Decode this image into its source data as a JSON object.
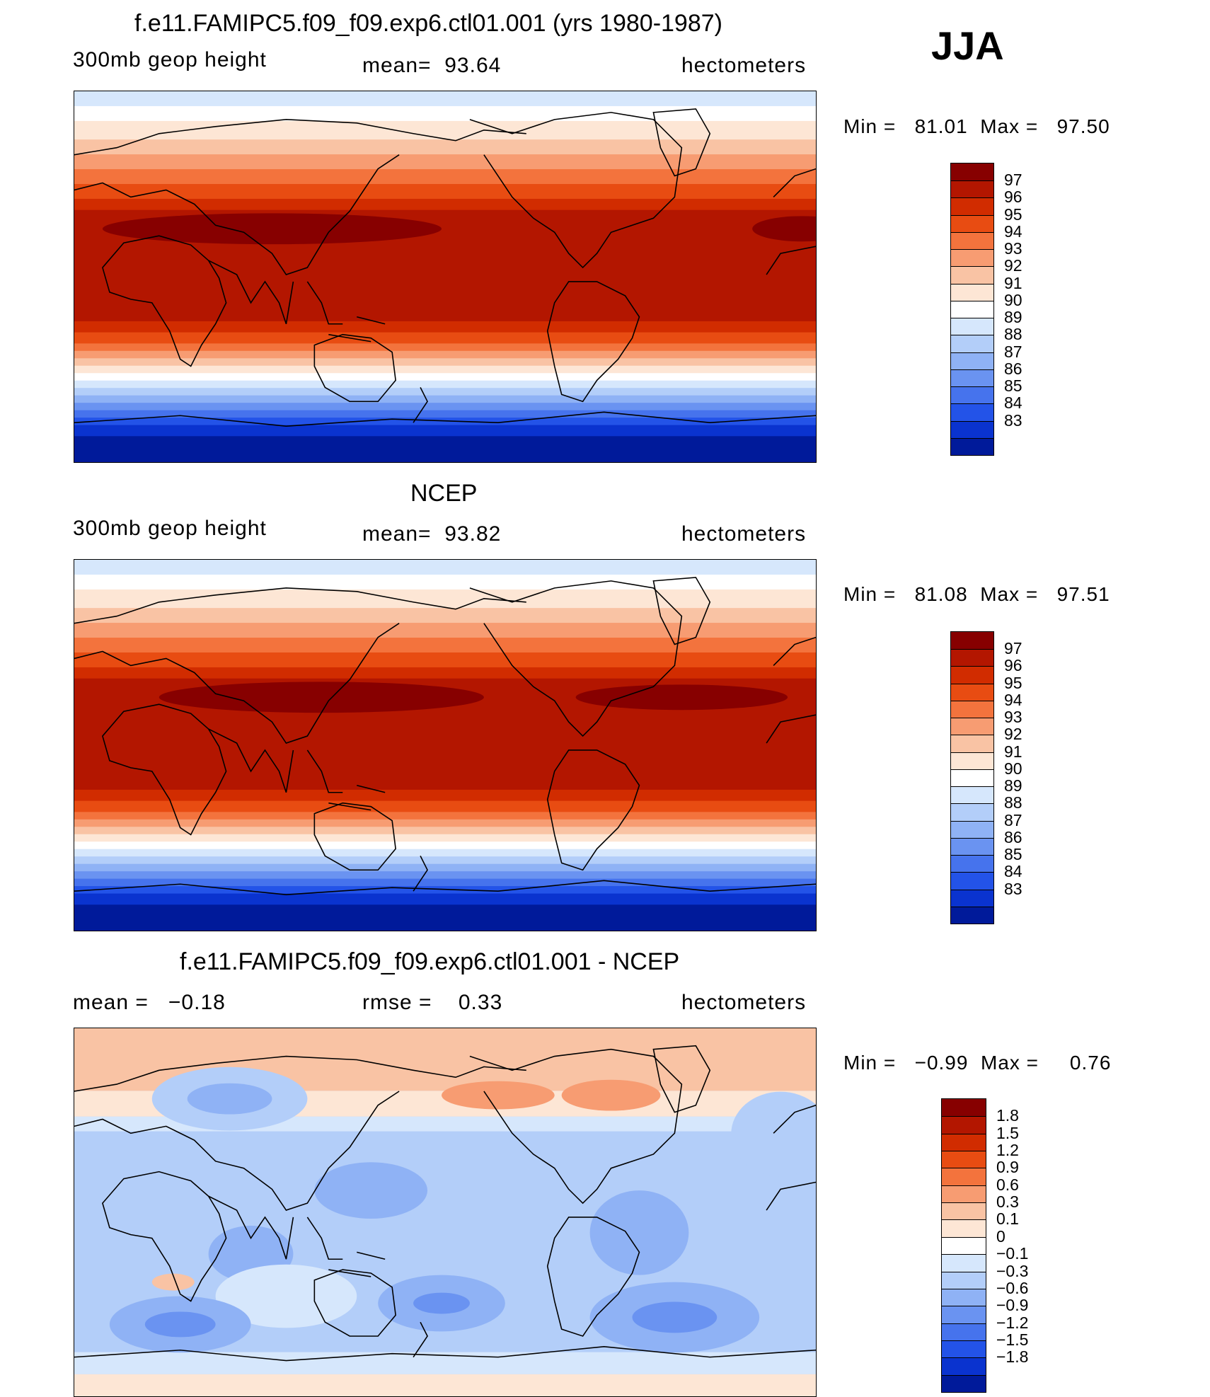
{
  "season": "JJA",
  "panels": [
    {
      "id": "model",
      "title": "f.e11.FAMIPC5.f09_f09.exp6.ctl01.001 (yrs 1980-1987)",
      "left_label": "300mb geop height",
      "center_label": "mean=  93.64",
      "right_label": "hectometers",
      "minmax": "Min =   81.01  Max =   97.50",
      "colorbar": {
        "labels": [
          "97",
          "96",
          "95",
          "94",
          "93",
          "92",
          "91",
          "90",
          "89",
          "88",
          "87",
          "86",
          "85",
          "84",
          "83"
        ],
        "colors": [
          "#870000",
          "#b31600",
          "#d12c00",
          "#e84c12",
          "#f3733d",
          "#f79c72",
          "#f9c3a4",
          "#fde6d5",
          "#ffffff",
          "#d6e7fc",
          "#b3cef9",
          "#8fb2f5",
          "#6a93f1",
          "#4673ed",
          "#2353e8",
          "#0a33cf",
          "#001a9a"
        ]
      }
    },
    {
      "id": "obs",
      "title": "NCEP",
      "left_label": "300mb geop height",
      "center_label": "mean=  93.82",
      "right_label": "hectometers",
      "minmax": "Min =   81.08  Max =   97.51",
      "colorbar": {
        "labels": [
          "97",
          "96",
          "95",
          "94",
          "93",
          "92",
          "91",
          "90",
          "89",
          "88",
          "87",
          "86",
          "85",
          "84",
          "83"
        ],
        "colors": [
          "#870000",
          "#b31600",
          "#d12c00",
          "#e84c12",
          "#f3733d",
          "#f79c72",
          "#f9c3a4",
          "#fde6d5",
          "#ffffff",
          "#d6e7fc",
          "#b3cef9",
          "#8fb2f5",
          "#6a93f1",
          "#4673ed",
          "#2353e8",
          "#0a33cf",
          "#001a9a"
        ]
      }
    },
    {
      "id": "diff",
      "title": "f.e11.FAMIPC5.f09_f09.exp6.ctl01.001 - NCEP",
      "left_label": "mean =   −0.18",
      "center_label": "rmse =    0.33",
      "right_label": "hectometers",
      "minmax": "Min =   −0.99  Max =     0.76",
      "colorbar": {
        "labels": [
          "1.8",
          "1.5",
          "1.2",
          "0.9",
          "0.6",
          "0.3",
          "0.1",
          "0",
          "−0.1",
          "−0.3",
          "−0.6",
          "−0.9",
          "−1.2",
          "−1.5",
          "−1.8"
        ],
        "colors": [
          "#870000",
          "#b31600",
          "#d12c00",
          "#e84c12",
          "#f3733d",
          "#f79c72",
          "#f9c3a4",
          "#fde6d5",
          "#ffffff",
          "#d6e7fc",
          "#b3cef9",
          "#8fb2f5",
          "#6a93f1",
          "#4673ed",
          "#2353e8",
          "#0a33cf",
          "#001a9a"
        ]
      }
    }
  ]
}
